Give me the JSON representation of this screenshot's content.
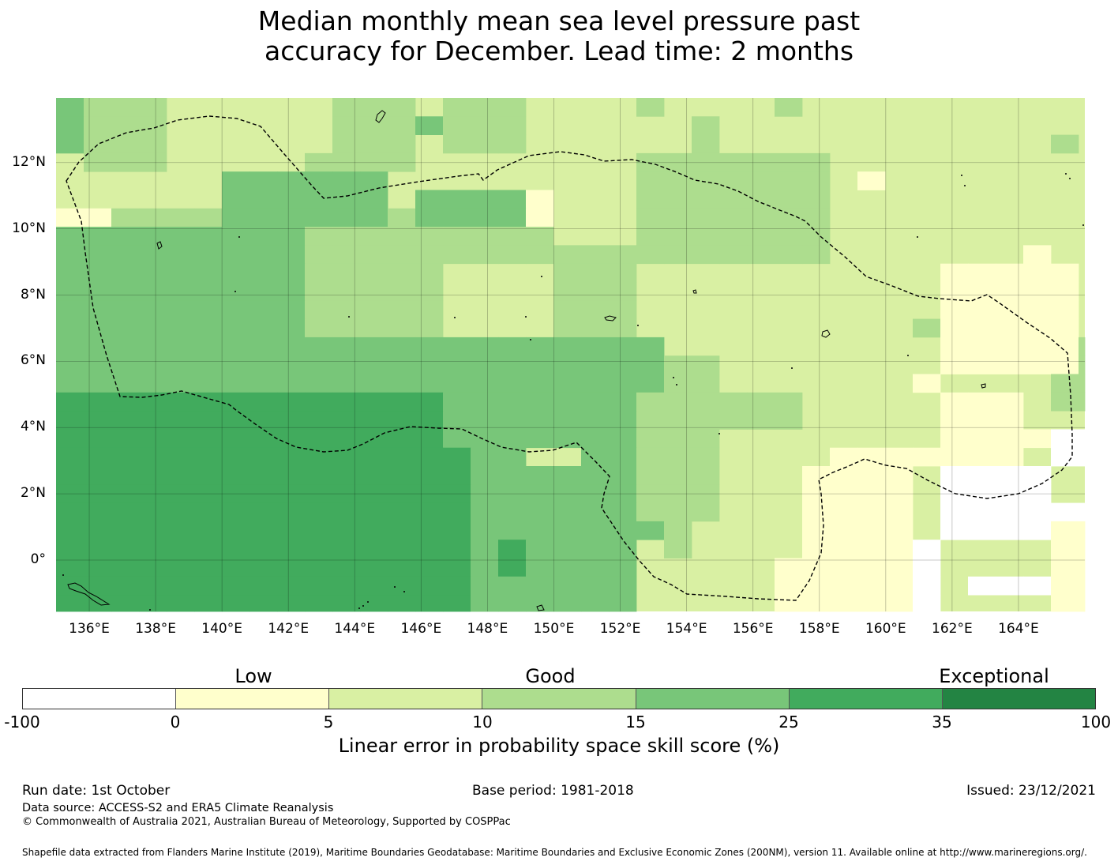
{
  "title": {
    "line1": "Median monthly mean sea level pressure past",
    "line2": "accuracy for December. Lead time: 2 months"
  },
  "map": {
    "lat_labels": [
      "12°N",
      "10°N",
      "8°N",
      "6°N",
      "4°N",
      "2°N",
      "0°"
    ],
    "lat_values": [
      12,
      10,
      8,
      6,
      4,
      2,
      0
    ],
    "lon_labels": [
      "136°E",
      "138°E",
      "140°E",
      "142°E",
      "144°E",
      "146°E",
      "148°E",
      "150°E",
      "152°E",
      "154°E",
      "156°E",
      "158°E",
      "160°E",
      "162°E",
      "164°E"
    ],
    "lon_values": [
      136,
      138,
      140,
      142,
      144,
      146,
      148,
      150,
      152,
      154,
      156,
      158,
      160,
      162,
      164
    ],
    "extent": {
      "lon_min": 135,
      "lon_max": 166,
      "lat_min": -1.55,
      "lat_max": 13.95
    },
    "region": "Micronesia EEZ"
  },
  "legend": {
    "categories": [
      "Low",
      "Good",
      "Exceptional"
    ],
    "ticks": [
      "-100",
      "0",
      "5",
      "10",
      "15",
      "25",
      "35",
      "100"
    ],
    "colors": [
      "#ffffff",
      "#ffffcc",
      "#d9f0a3",
      "#addd8e",
      "#78c679",
      "#41ab5d",
      "#238443"
    ],
    "title": "Linear error in probability space skill score (%)"
  },
  "footer": {
    "run_date": "Run date: 1st October",
    "base_period": "Base period: 1981-2018",
    "issued": "Issued: 23/12/2021",
    "data_source": "Data source: ACCESS-S2 and ERA5 Climate Reanalysis",
    "copyright": "© Commonwealth of Australia 2021, Australian Bureau of Meteorology, Supported by COSPPac",
    "shapefile": "Shapefile data extracted from Flanders Marine Institute (2019), Maritime Boundaries Geodatabase: Maritime Boundaries and Exclusive Economic Zones (200NM), version 11. Available online at http://www.marineregions.org/."
  }
}
